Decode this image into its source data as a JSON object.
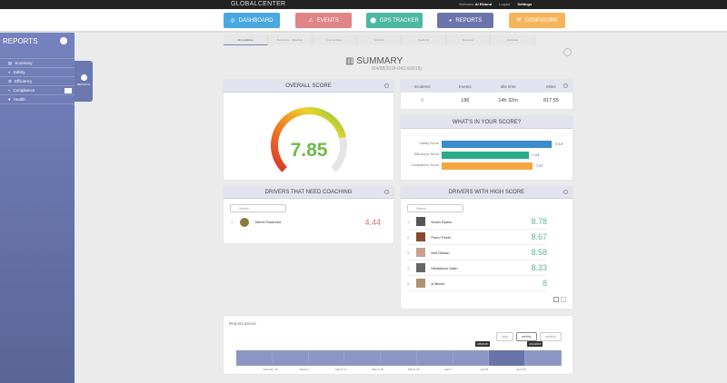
{
  "header": {
    "logo": "GLOBALCENTER",
    "welcome": "Welcome",
    "user": "Al Eklund",
    "logout": "Logout",
    "settings": "Settings"
  },
  "nav": [
    {
      "label": "DASHBOARD",
      "color": "#4aa8e0",
      "icon": "dashboard-icon"
    },
    {
      "label": "EVENTS",
      "color": "#e08585",
      "icon": "warning-icon"
    },
    {
      "label": "GPS TRACKER",
      "color": "#4cb8a0",
      "icon": "location-icon"
    },
    {
      "label": "REPORTS",
      "color": "#6b75ad",
      "icon": "chart-icon"
    },
    {
      "label": "CONFIGURE",
      "color": "#f7b55b",
      "icon": "wrench-icon"
    }
  ],
  "subtabs": [
    "All Locations",
    "Defensive · Pipelines",
    "Connections",
    "Vehicles",
    "Trade Co",
    "Business",
    "Terminals"
  ],
  "sidebar": {
    "title": "REPORTS",
    "items": [
      "Summary",
      "Safety",
      "Efficiency",
      "Compliance",
      "Health"
    ],
    "flyout": "REPORTS"
  },
  "summary": {
    "title": "SUMMARY",
    "range": "(04/08/2018-04/14/2018)"
  },
  "overall": {
    "title": "OVERALL SCORE",
    "value": "7.85",
    "score": 7.85,
    "max": 10
  },
  "stats": {
    "headers": [
      "Incidents",
      "Events",
      "Idle time",
      "Miles"
    ],
    "values": [
      "0",
      "186",
      "14h 32m",
      "817.55"
    ]
  },
  "breakdown": {
    "title": "WHAT'S IN YOUR SCORE?",
    "items": [
      {
        "label": "Safety Score",
        "value": 9.19,
        "text": "9.19",
        "color": "#3a8ccc"
      },
      {
        "label": "Efficiency Score",
        "value": 7.24,
        "text": "7.24",
        "color": "#2aaa88"
      },
      {
        "label": "Compliance Score",
        "value": 7.57,
        "text": "7.57",
        "color": "#f4a842"
      }
    ]
  },
  "coaching": {
    "title": "DRIVERS THAT NEED COACHING",
    "search": "Search",
    "drivers": [
      {
        "rank": "1.",
        "name": "Stefan Radecka",
        "score": "4.44"
      }
    ]
  },
  "high": {
    "title": "DRIVERS WITH HIGH SCORE",
    "search": "Search",
    "drivers": [
      {
        "rank": "1.",
        "name": "Nolan Ryass",
        "score": "8.78"
      },
      {
        "rank": "2.",
        "name": "Piotro Pesel",
        "score": "8.67"
      },
      {
        "rank": "3.",
        "name": "Neil Dillean",
        "score": "8.58"
      },
      {
        "rank": "4.",
        "name": "Mihailescu Dalin",
        "score": "8.33"
      },
      {
        "rank": "5.",
        "name": "al Bicchi",
        "score": "8"
      }
    ]
  },
  "period": {
    "title": "Reports period",
    "buttons": [
      "daily",
      "weekly",
      "monthly"
    ],
    "start": "4/8/2018",
    "end": "4/14/2018",
    "ticks": [
      "February 26",
      "March 4",
      "March 11",
      "March 18",
      "March 25",
      "April 1",
      "April 8",
      "April 15"
    ]
  }
}
